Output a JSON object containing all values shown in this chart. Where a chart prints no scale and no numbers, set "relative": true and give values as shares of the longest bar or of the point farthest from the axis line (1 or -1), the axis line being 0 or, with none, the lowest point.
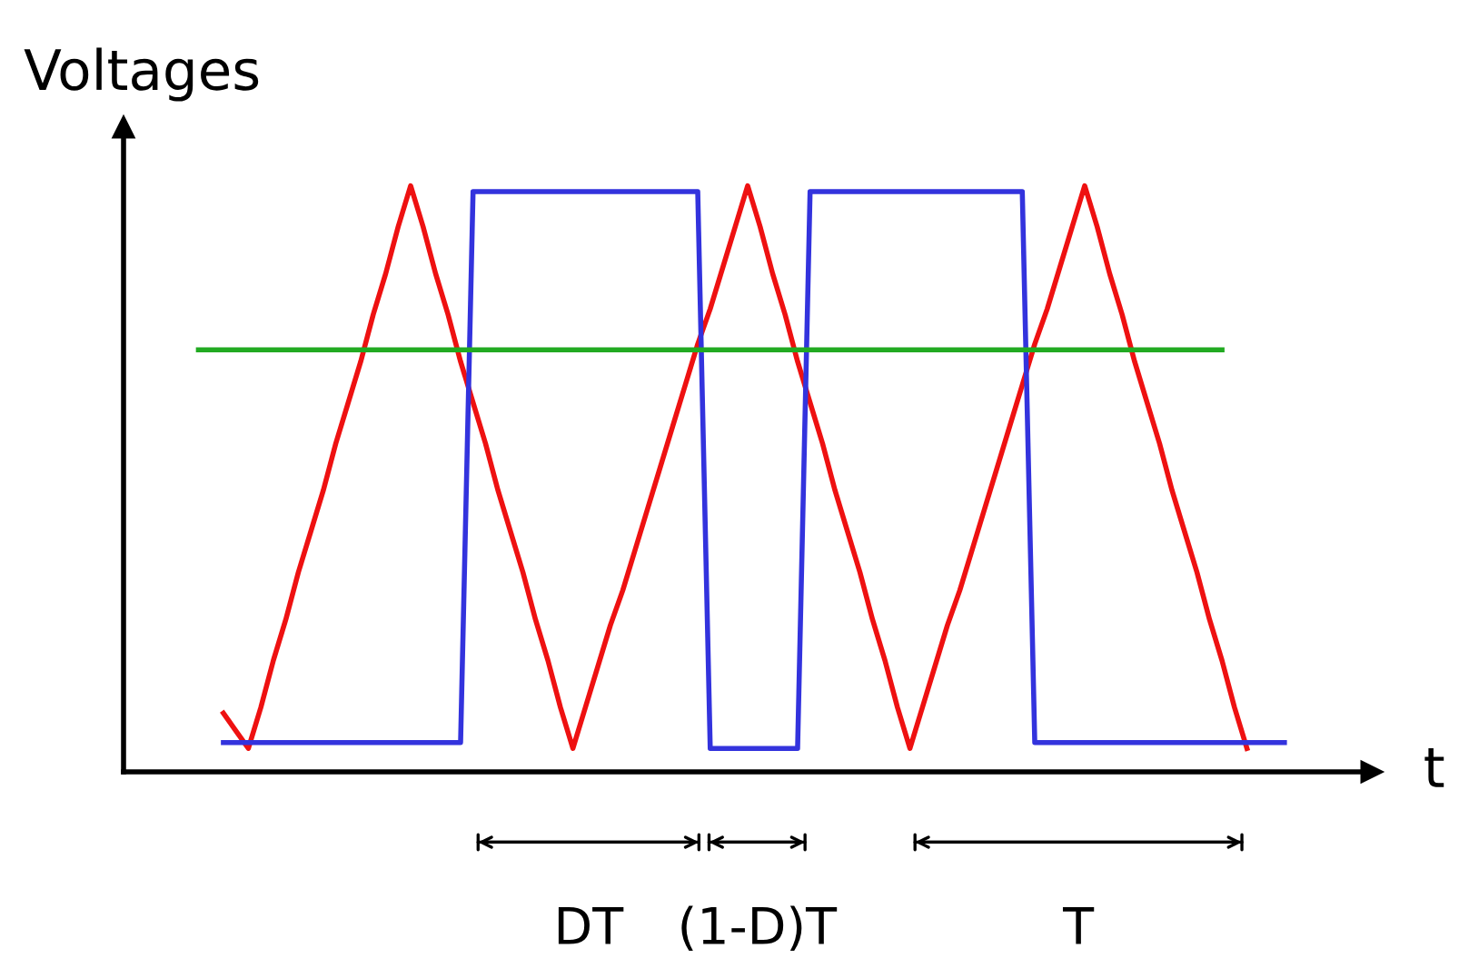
{
  "chart_data": {
    "type": "line",
    "relative": true,
    "ylabel": "Voltages",
    "xlabel": "t",
    "tick_labels": false,
    "marker": "none",
    "line_style": "solid",
    "categories": [
      null,
      null,
      null,
      null,
      null,
      null,
      null,
      null,
      null,
      null,
      null,
      null,
      null,
      null,
      null,
      null,
      null,
      null,
      null,
      null,
      null,
      null,
      null,
      null,
      null,
      null,
      null,
      null,
      null,
      null,
      null,
      null,
      null,
      null,
      null,
      null,
      null,
      null,
      null,
      null,
      null,
      null,
      null,
      null,
      null,
      null,
      null,
      null,
      null,
      null,
      null,
      null,
      null,
      null,
      null,
      null,
      null,
      null,
      null,
      null,
      null,
      null,
      null,
      null,
      null,
      null,
      null,
      null,
      null,
      null,
      null,
      null,
      null,
      null,
      null,
      null,
      null,
      null,
      null,
      null,
      null,
      null,
      null,
      null,
      null,
      null,
      null,
      null
    ],
    "series": [
      {
        "color": "#ee1111",
        "values": [
          null,
          null,
          0.1,
          0.07,
          0.04,
          0.11,
          0.19,
          0.26,
          0.34,
          0.41,
          0.48,
          0.56,
          0.63,
          0.7,
          0.78,
          0.85,
          0.93,
          1.0,
          0.93,
          0.85,
          0.78,
          0.7,
          0.63,
          0.56,
          0.48,
          0.41,
          0.34,
          0.26,
          0.19,
          0.11,
          0.04,
          0.11,
          0.18,
          0.25,
          0.31,
          0.38,
          0.45,
          0.52,
          0.59,
          0.66,
          0.73,
          0.79,
          0.86,
          0.93,
          1.0,
          0.93,
          0.85,
          0.78,
          0.7,
          0.63,
          0.56,
          0.48,
          0.41,
          0.34,
          0.26,
          0.19,
          0.11,
          0.04,
          0.11,
          0.18,
          0.25,
          0.31,
          0.38,
          0.45,
          0.52,
          0.59,
          0.66,
          0.73,
          0.79,
          0.86,
          0.93,
          1.0,
          0.93,
          0.85,
          0.78,
          0.7,
          0.63,
          0.56,
          0.48,
          0.41,
          0.34,
          0.26,
          0.19,
          0.11,
          0.04,
          null,
          null,
          null
        ]
      },
      {
        "color": "#3333dd",
        "values": [
          null,
          null,
          0.05,
          0.05,
          0.05,
          0.05,
          0.05,
          0.05,
          0.05,
          0.05,
          0.05,
          0.05,
          0.05,
          0.05,
          0.05,
          0.05,
          0.05,
          0.05,
          0.05,
          0.05,
          0.05,
          0.05,
          0.99,
          0.99,
          0.99,
          0.99,
          0.99,
          0.99,
          0.99,
          0.99,
          0.99,
          0.99,
          0.99,
          0.99,
          0.99,
          0.99,
          0.99,
          0.99,
          0.99,
          0.99,
          0.99,
          0.04,
          0.04,
          0.04,
          0.04,
          0.04,
          0.04,
          0.04,
          0.04,
          0.99,
          0.99,
          0.99,
          0.99,
          0.99,
          0.99,
          0.99,
          0.99,
          0.99,
          0.99,
          0.99,
          0.99,
          0.99,
          0.99,
          0.99,
          0.99,
          0.99,
          0.99,
          0.05,
          0.05,
          0.05,
          0.05,
          0.05,
          0.05,
          0.05,
          0.05,
          0.05,
          0.05,
          0.05,
          0.05,
          0.05,
          0.05,
          0.05,
          0.05,
          0.05,
          0.05,
          0.05,
          0.05,
          0.05
        ]
      },
      {
        "color": "#22aa22",
        "values": [
          0.72,
          0.72,
          0.72,
          0.72,
          0.72,
          0.72,
          0.72,
          0.72,
          0.72,
          0.72,
          0.72,
          0.72,
          0.72,
          0.72,
          0.72,
          0.72,
          0.72,
          0.72,
          0.72,
          0.72,
          0.72,
          0.72,
          0.72,
          0.72,
          0.72,
          0.72,
          0.72,
          0.72,
          0.72,
          0.72,
          0.72,
          0.72,
          0.72,
          0.72,
          0.72,
          0.72,
          0.72,
          0.72,
          0.72,
          0.72,
          0.72,
          0.72,
          0.72,
          0.72,
          0.72,
          0.72,
          0.72,
          0.72,
          0.72,
          0.72,
          0.72,
          0.72,
          0.72,
          0.72,
          0.72,
          0.72,
          0.72,
          0.72,
          0.72,
          0.72,
          0.72,
          0.72,
          0.72,
          0.72,
          0.72,
          0.72,
          0.72,
          0.72,
          0.72,
          0.72,
          0.72,
          0.72,
          0.72,
          0.72,
          0.72,
          0.72,
          0.72,
          0.72,
          0.72,
          0.72,
          0.72,
          0.72,
          0.72,
          null,
          null,
          null,
          null,
          null
        ]
      }
    ],
    "annotations": [
      "DT",
      "(1-D)T",
      "T"
    ]
  }
}
